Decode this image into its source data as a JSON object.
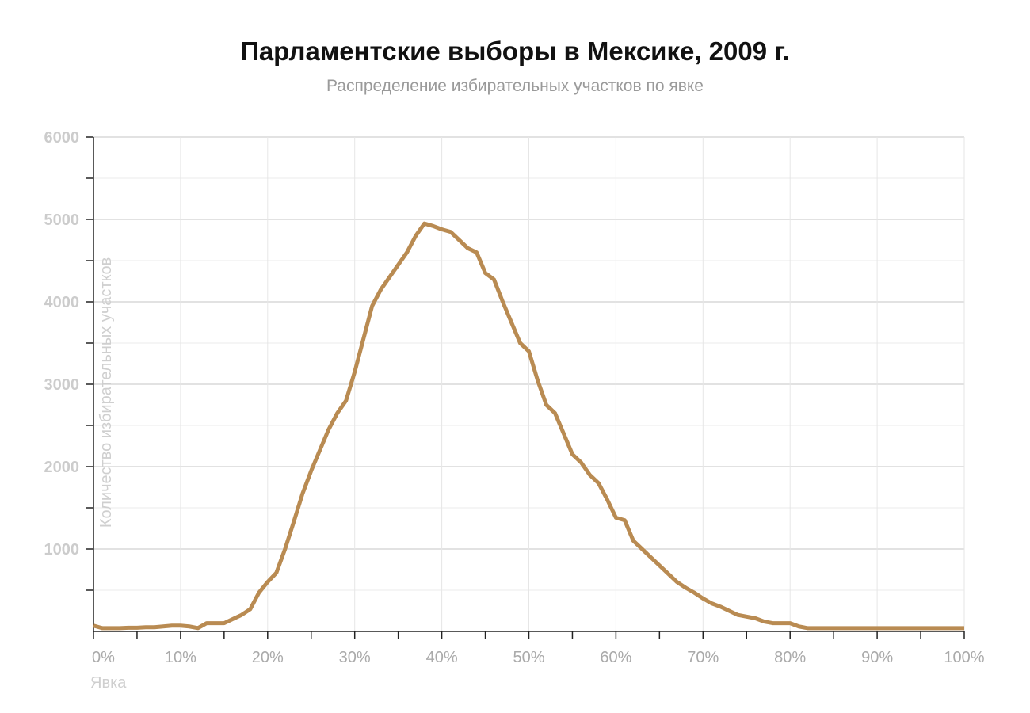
{
  "chart_data": {
    "type": "line",
    "title": "Парламентские выборы в Мексике, 2009 г.",
    "subtitle": "Распределение избирательных участков по явке",
    "xlabel": "Явка",
    "ylabel": "Количество избирательных участков",
    "xlim": [
      0,
      100
    ],
    "ylim": [
      0,
      6000
    ],
    "x_ticks": [
      0,
      10,
      20,
      30,
      40,
      50,
      60,
      70,
      80,
      90,
      100
    ],
    "x_tick_labels": [
      "0%",
      "10%",
      "20%",
      "30%",
      "40%",
      "50%",
      "60%",
      "70%",
      "80%",
      "90%",
      "100%"
    ],
    "y_ticks": [
      1000,
      2000,
      3000,
      4000,
      5000,
      6000
    ],
    "y_tick_labels": [
      "1000",
      "2000",
      "3000",
      "4000",
      "5000",
      "6000"
    ],
    "grid": true,
    "line_color": "#b98b52",
    "series": [
      {
        "x": [
          0,
          1,
          2,
          3,
          4,
          5,
          6,
          7,
          8,
          9,
          10,
          11,
          12,
          13,
          14,
          15,
          16,
          17,
          18,
          19,
          20,
          21,
          22,
          23,
          24,
          25,
          26,
          27,
          28,
          29,
          30,
          31,
          32,
          33,
          34,
          35,
          36,
          37,
          38,
          39,
          40,
          41,
          42,
          43,
          44,
          45,
          46,
          47,
          48,
          49,
          50,
          51,
          52,
          53,
          54,
          55,
          56,
          57,
          58,
          59,
          60,
          61,
          62,
          63,
          64,
          65,
          66,
          67,
          68,
          69,
          70,
          71,
          72,
          73,
          74,
          75,
          76,
          77,
          78,
          79,
          80,
          81,
          82,
          83,
          84,
          85,
          86,
          87,
          88,
          89,
          90,
          91,
          92,
          93,
          94,
          95,
          96,
          97,
          98,
          99,
          100
        ],
        "values": [
          70,
          40,
          40,
          40,
          45,
          45,
          50,
          50,
          60,
          70,
          70,
          60,
          40,
          100,
          100,
          100,
          150,
          200,
          270,
          470,
          600,
          710,
          1000,
          1330,
          1670,
          1950,
          2200,
          2450,
          2650,
          2800,
          3150,
          3550,
          3950,
          4150,
          4300,
          4450,
          4600,
          4800,
          4950,
          4920,
          4880,
          4850,
          4750,
          4650,
          4600,
          4350,
          4270,
          4000,
          3750,
          3500,
          3400,
          3050,
          2750,
          2650,
          2400,
          2150,
          2050,
          1900,
          1800,
          1600,
          1380,
          1350,
          1100,
          1000,
          900,
          800,
          700,
          600,
          530,
          470,
          400,
          340,
          300,
          250,
          200,
          180,
          160,
          120,
          100,
          100,
          100,
          60,
          40,
          40,
          40,
          40,
          40,
          40,
          40,
          40,
          40,
          40,
          40,
          40,
          40,
          40,
          40,
          40,
          40,
          40,
          40
        ]
      }
    ]
  }
}
